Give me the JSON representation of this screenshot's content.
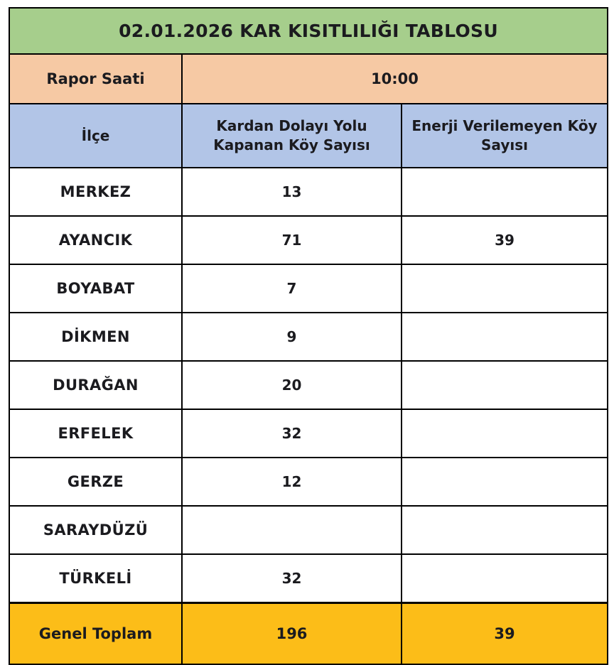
{
  "chart_data": {
    "type": "table",
    "title": "02.01.2026 KAR KISITLILIĞI TABLOSU",
    "report_time_label": "Rapor Saati",
    "report_time_value": "10:00",
    "columns": [
      "İlçe",
      "Kardan Dolayı Yolu Kapanan Köy Sayısı",
      "Enerji Verilemeyen Köy Sayısı"
    ],
    "rows": [
      [
        "MERKEZ",
        "13",
        ""
      ],
      [
        "AYANCIK",
        "71",
        "39"
      ],
      [
        "BOYABAT",
        "7",
        ""
      ],
      [
        "DİKMEN",
        "9",
        ""
      ],
      [
        "DURAĞAN",
        "20",
        ""
      ],
      [
        "ERFELEK",
        "32",
        ""
      ],
      [
        "GERZE",
        "12",
        ""
      ],
      [
        "SARAYDÜZÜ",
        "",
        ""
      ],
      [
        "TÜRKELİ",
        "32",
        ""
      ]
    ],
    "total": [
      "Genel Toplam",
      "196",
      "39"
    ]
  },
  "colors": {
    "title_bg": "#a6ce8c",
    "report_bg": "#f6c9a4",
    "header_bg": "#b2c5e7",
    "total_bg": "#fcbd18",
    "border": "#000000",
    "text": "#1b1b1f"
  }
}
